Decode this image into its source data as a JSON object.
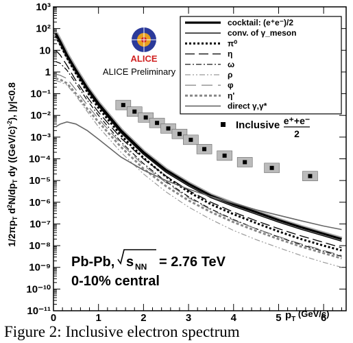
{
  "chart_data": {
    "type": "line",
    "xlabel": "p_T (GeV/c)",
    "ylabel": "1/2πp_T d²N/dp_T dy ((GeV/c)⁻²), |y|<0.8",
    "xlim": [
      0,
      6.5
    ],
    "ylim": [
      1e-11,
      1000
    ],
    "yscale": "log",
    "x_ticks": [
      "0",
      "1",
      "2",
      "3",
      "4",
      "5",
      "6"
    ],
    "y_ticks": [
      "10⁻¹¹",
      "10⁻¹⁰",
      "10⁻⁹",
      "10⁻⁸",
      "10⁻⁷",
      "10⁻⁶",
      "10⁻⁵",
      "10⁻⁴",
      "10⁻³",
      "10⁻²",
      "10⁻¹",
      "1",
      "10",
      "10²",
      "10³"
    ],
    "x": [
      0.05,
      0.15,
      0.3,
      0.5,
      0.75,
      1.0,
      1.5,
      2.0,
      2.5,
      3.0,
      3.5,
      4.0,
      4.5,
      5.0,
      5.5,
      6.0,
      6.4
    ],
    "series": [
      {
        "name": "cocktail: (e⁺e⁻)/2",
        "style": "thick",
        "color": "#000000",
        "values": [
          60,
          25,
          6,
          1.2,
          0.18,
          0.035,
          0.002,
          0.0002,
          3e-05,
          7e-06,
          2e-06,
          8e-07,
          3.5e-07,
          1.5e-07,
          7e-08,
          3.5e-08,
          2e-08
        ]
      },
      {
        "name": "conv. of γ_meson",
        "style": "solid",
        "color": "#000000",
        "values": [
          50,
          20,
          5,
          1.0,
          0.15,
          0.028,
          0.0016,
          0.00016,
          2.4e-05,
          5.6e-06,
          1.6e-06,
          6.4e-07,
          2.8e-07,
          1.2e-07,
          5.6e-08,
          2.8e-08,
          1.6e-08
        ]
      },
      {
        "name": "π⁰",
        "style": "dotted-thick",
        "color": "#000000",
        "values": [
          45,
          18,
          4.5,
          0.85,
          0.12,
          0.022,
          0.0012,
          0.00011,
          1.5e-05,
          3e-06,
          8e-07,
          2.8e-07,
          1.1e-07,
          4.5e-08,
          2e-08,
          1e-08,
          6e-09
        ]
      },
      {
        "name": "η",
        "style": "longdash",
        "color": "#000000",
        "values": [
          10,
          6,
          2,
          0.4,
          0.07,
          0.014,
          0.0009,
          0.0001,
          1.6e-05,
          3.5e-06,
          1e-06,
          3.5e-07,
          1.4e-07,
          6e-08,
          2.8e-08,
          1.4e-08,
          8e-09
        ]
      },
      {
        "name": "ω",
        "style": "dashdot",
        "color": "#000000",
        "values": [
          3,
          2.5,
          1.2,
          0.3,
          0.05,
          0.01,
          0.0006,
          6e-05,
          9e-06,
          1.8e-06,
          4.8e-07,
          1.6e-07,
          6e-08,
          2.5e-08,
          1.1e-08,
          5.5e-09,
          3.2e-09
        ]
      },
      {
        "name": "ρ",
        "style": "dashdot-gray",
        "color": "#999999",
        "values": [
          0.4,
          0.35,
          0.25,
          0.08,
          0.015,
          0.003,
          0.0002,
          2e-05,
          3e-06,
          6e-07,
          1.6e-07,
          5e-08,
          1.9e-08,
          8e-09,
          3.5e-09,
          1.7e-09,
          1e-09
        ]
      },
      {
        "name": "φ",
        "style": "dash-gray",
        "color": "#777777",
        "values": [
          0.8,
          0.7,
          0.5,
          0.15,
          0.03,
          0.007,
          0.0005,
          5e-05,
          8e-06,
          1.6e-06,
          4.5e-07,
          1.5e-07,
          6e-08,
          2.6e-08,
          1.2e-08,
          6e-09,
          3.5e-09
        ]
      },
      {
        "name": "η'",
        "style": "dotted-gray",
        "color": "#888888",
        "values": [
          0.5,
          0.45,
          0.3,
          0.1,
          0.02,
          0.005,
          0.00035,
          3.5e-05,
          5.5e-06,
          1.2e-06,
          3.5e-07,
          1.2e-07,
          4.8e-08,
          2e-08,
          9e-09,
          4.5e-09,
          2.6e-09
        ]
      },
      {
        "name": "direct γ,γ*",
        "style": "solid-gray",
        "color": "#666666",
        "values": [
          0.003,
          0.004,
          0.005,
          0.004,
          0.002,
          0.0008,
          0.00012,
          3e-05,
          1e-05,
          4e-06,
          1.8e-06,
          9e-07,
          4.5e-07,
          2.5e-07,
          1.4e-07,
          8e-08,
          5.5e-08
        ]
      }
    ],
    "inclusive": {
      "name": "Inclusive",
      "label_top": "e⁺+e⁻",
      "label_bottom": "2",
      "points": [
        {
          "x": 1.55,
          "y": 0.03
        },
        {
          "x": 1.8,
          "y": 0.015
        },
        {
          "x": 2.05,
          "y": 0.008
        },
        {
          "x": 2.3,
          "y": 0.0045
        },
        {
          "x": 2.55,
          "y": 0.0025
        },
        {
          "x": 2.8,
          "y": 0.0014
        },
        {
          "x": 3.05,
          "y": 0.00075
        },
        {
          "x": 3.35,
          "y": 0.00028
        },
        {
          "x": 3.8,
          "y": 0.00014
        },
        {
          "x": 4.25,
          "y": 7e-05
        },
        {
          "x": 4.85,
          "y": 3.8e-05
        },
        {
          "x": 5.7,
          "y": 1.6e-05
        }
      ]
    }
  },
  "labels": {
    "logo_text": "ALICE",
    "preliminary": "ALICE Preliminary",
    "system_prefix": "Pb-Pb,",
    "sqrt_s": "s",
    "sqrt_sub": "NN",
    "energy": "= 2.76 TeV",
    "centrality": "0-10% central"
  },
  "caption": "Figure 2: Inclusive electron spectrum"
}
